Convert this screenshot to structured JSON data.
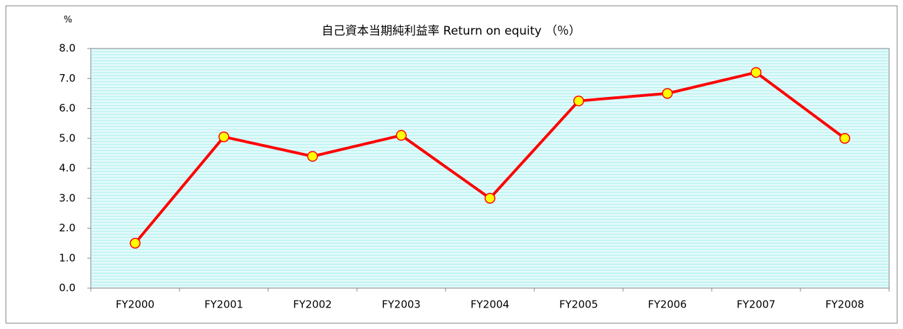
{
  "chart_data": {
    "type": "line",
    "title": "自己資本当期純利益率 Return on equity （％）",
    "y_unit": "%",
    "categories": [
      "FY2000",
      "FY2001",
      "FY2002",
      "FY2003",
      "FY2004",
      "FY2005",
      "FY2006",
      "FY2007",
      "FY2008"
    ],
    "series": [
      {
        "name": "Return on equity",
        "color": "#ff0000",
        "marker_color": "#ffff00",
        "values": [
          1.5,
          5.05,
          4.4,
          5.1,
          3.0,
          6.25,
          6.5,
          7.2,
          5.0
        ]
      }
    ],
    "ylim": [
      0,
      8
    ],
    "yticks": [
      {
        "value": 0,
        "label": "0.0"
      },
      {
        "value": 1,
        "label": "1.0"
      },
      {
        "value": 2,
        "label": "2.0"
      },
      {
        "value": 3,
        "label": "3.0"
      },
      {
        "value": 4,
        "label": "4.0"
      },
      {
        "value": 5,
        "label": "5.0"
      },
      {
        "value": 6,
        "label": "6.0"
      },
      {
        "value": 7,
        "label": "7.0"
      },
      {
        "value": 8,
        "label": "8.0"
      }
    ],
    "legend": false
  }
}
